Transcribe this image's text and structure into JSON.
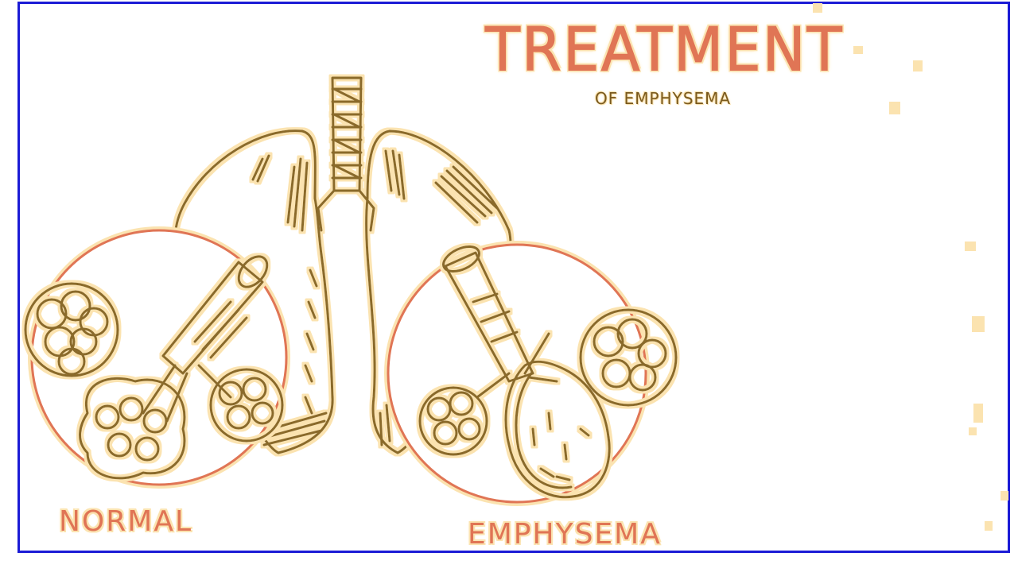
{
  "diagram": {
    "title": "TREATMENT",
    "subtitle": "OF EMPHYSEMA",
    "labels": {
      "normal": "NORMAL",
      "emphysema": "EMPHYSEMA"
    },
    "colors": {
      "frame": "#1b1bd6",
      "title_orange": "#e07555",
      "outline_brown": "#8a6a2a",
      "highlight_tan": "#fbe3b0",
      "circle_orange": "#e07555"
    }
  }
}
